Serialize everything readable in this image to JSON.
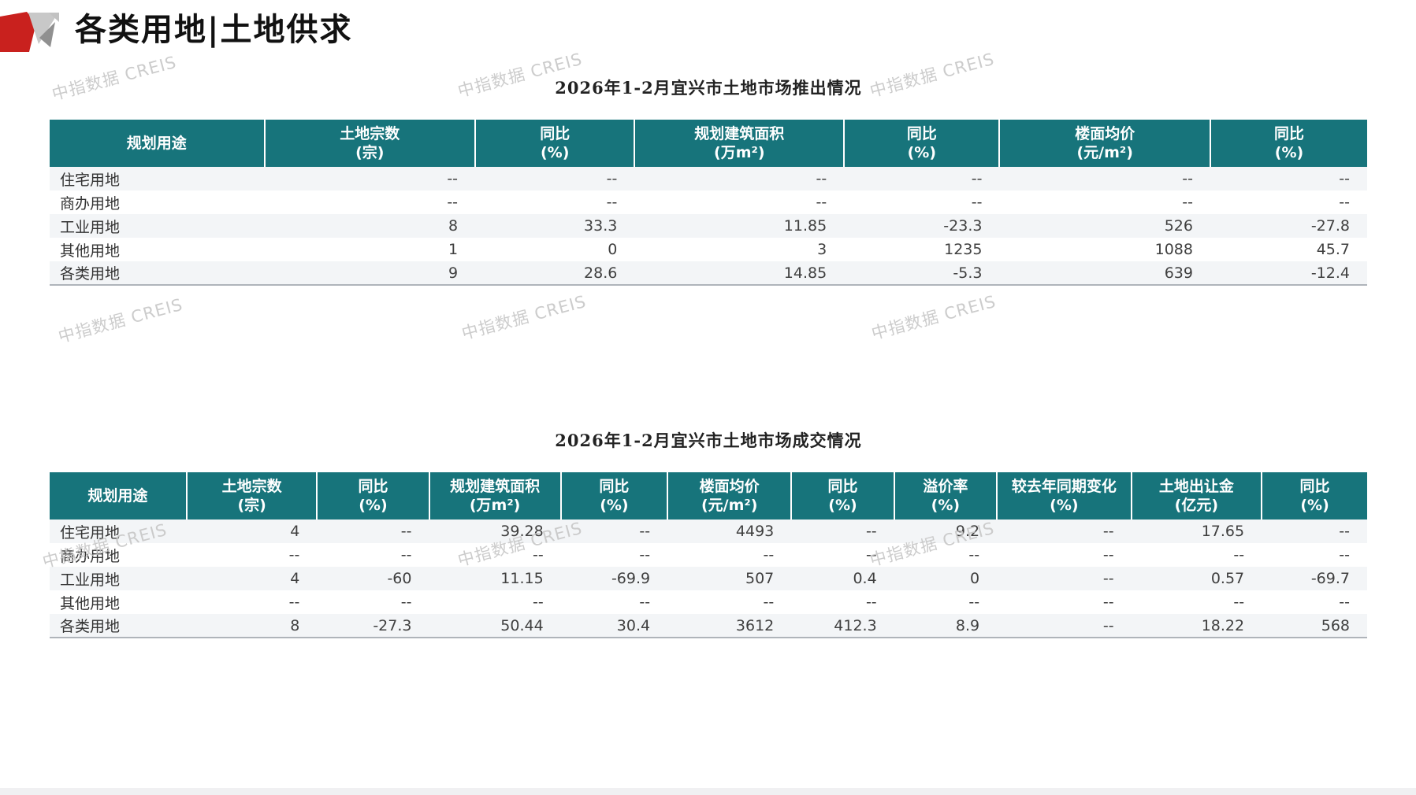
{
  "page": {
    "title": "各类用地|土地供求",
    "watermark_text": "中指数据 CREIS"
  },
  "colors": {
    "header_teal": "#17747B",
    "logo_red": "#C9211E",
    "logo_gray_light": "#C8C8C8",
    "logo_gray_dark": "#909090",
    "row_stripe": "#F3F5F7",
    "watermark_gray": "#C7C7C7"
  },
  "tables": {
    "supply": {
      "title": "2026年1-2月宜兴市土地市场推出情况",
      "columns": [
        {
          "label": "规划用途",
          "unit": ""
        },
        {
          "label": "土地宗数",
          "unit": "(宗)"
        },
        {
          "label": "同比",
          "unit": "(%)"
        },
        {
          "label": "规划建筑面积",
          "unit": "(万m²)"
        },
        {
          "label": "同比",
          "unit": "(%)"
        },
        {
          "label": "楼面均价",
          "unit": "(元/m²)"
        },
        {
          "label": "同比",
          "unit": "(%)"
        }
      ],
      "rows": [
        [
          "住宅用地",
          "--",
          "--",
          "--",
          "--",
          "--",
          "--"
        ],
        [
          "商办用地",
          "--",
          "--",
          "--",
          "--",
          "--",
          "--"
        ],
        [
          "工业用地",
          "8",
          "33.3",
          "11.85",
          "-23.3",
          "526",
          "-27.8"
        ],
        [
          "其他用地",
          "1",
          "0",
          "3",
          "1235",
          "1088",
          "45.7"
        ],
        [
          "各类用地",
          "9",
          "28.6",
          "14.85",
          "-5.3",
          "639",
          "-12.4"
        ]
      ]
    },
    "deal": {
      "title": "2026年1-2月宜兴市土地市场成交情况",
      "columns": [
        {
          "label": "规划用途",
          "unit": ""
        },
        {
          "label": "土地宗数",
          "unit": "(宗)"
        },
        {
          "label": "同比",
          "unit": "(%)"
        },
        {
          "label": "规划建筑面积",
          "unit": "(万m²)"
        },
        {
          "label": "同比",
          "unit": "(%)"
        },
        {
          "label": "楼面均价",
          "unit": "(元/m²)"
        },
        {
          "label": "同比",
          "unit": "(%)"
        },
        {
          "label": "溢价率",
          "unit": "(%)"
        },
        {
          "label": "较去年同期变化",
          "unit": "(%)"
        },
        {
          "label": "土地出让金",
          "unit": "(亿元)"
        },
        {
          "label": "同比",
          "unit": "(%)"
        }
      ],
      "rows": [
        [
          "住宅用地",
          "4",
          "--",
          "39.28",
          "--",
          "4493",
          "--",
          "9.2",
          "--",
          "17.65",
          "--"
        ],
        [
          "商办用地",
          "--",
          "--",
          "--",
          "--",
          "--",
          "--",
          "--",
          "--",
          "--",
          "--"
        ],
        [
          "工业用地",
          "4",
          "-60",
          "11.15",
          "-69.9",
          "507",
          "0.4",
          "0",
          "--",
          "0.57",
          "-69.7"
        ],
        [
          "其他用地",
          "--",
          "--",
          "--",
          "--",
          "--",
          "--",
          "--",
          "--",
          "--",
          "--"
        ],
        [
          "各类用地",
          "8",
          "-27.3",
          "50.44",
          "30.4",
          "3612",
          "412.3",
          "8.9",
          "--",
          "18.22",
          "568"
        ]
      ]
    }
  }
}
